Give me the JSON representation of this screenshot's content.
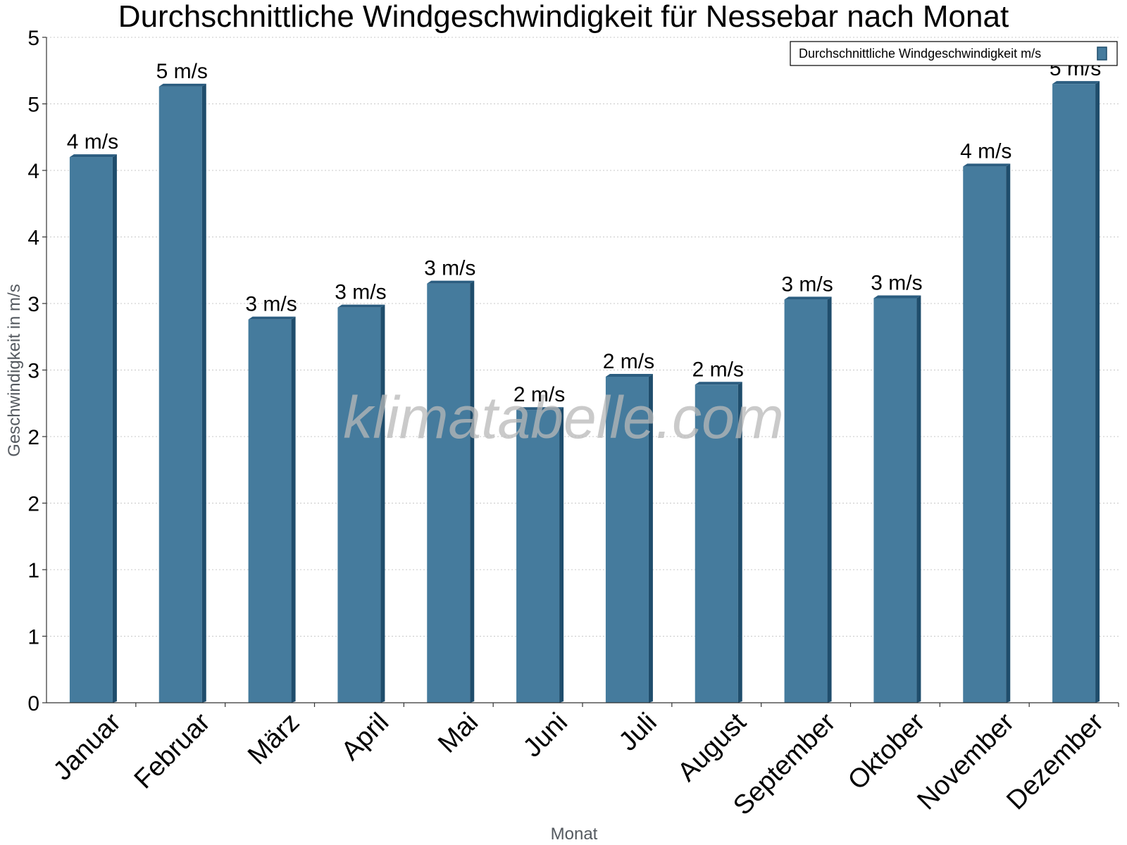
{
  "watermark": "klimatabelle.com",
  "colors": {
    "bar": "#457b9d",
    "bar_side": "#1f4d6c",
    "bar_top": "#2b5d80",
    "grid": "#c8c8c8",
    "axis": "#333333"
  },
  "chart_data": {
    "type": "bar",
    "title": "Durchschnittliche Windgeschwindigkeit für Nessebar nach Monat",
    "xlabel": "Monat",
    "ylabel": "Geschwindigkeit in m/s",
    "ylim": [
      0,
      5
    ],
    "yticks": [
      {
        "value": 0,
        "label": "0"
      },
      {
        "value": 0.5,
        "label": "1"
      },
      {
        "value": 1,
        "label": "1"
      },
      {
        "value": 1.5,
        "label": "2"
      },
      {
        "value": 2,
        "label": "2"
      },
      {
        "value": 2.5,
        "label": "3"
      },
      {
        "value": 3,
        "label": "3"
      },
      {
        "value": 3.5,
        "label": "4"
      },
      {
        "value": 4,
        "label": "4"
      },
      {
        "value": 4.5,
        "label": "5"
      },
      {
        "value": 5,
        "label": "5"
      }
    ],
    "grid": true,
    "legend": {
      "position": "top-right",
      "label": "Durchschnittliche Windgeschwindigkeit m/s"
    },
    "categories": [
      "Januar",
      "Februar",
      "März",
      "April",
      "Mai",
      "Juni",
      "Juli",
      "August",
      "September",
      "Oktober",
      "November",
      "Dezember"
    ],
    "series": [
      {
        "name": "Durchschnittliche Windgeschwindigkeit m/s",
        "values": [
          4.1,
          4.63,
          2.88,
          2.97,
          3.15,
          2.2,
          2.45,
          2.39,
          3.03,
          3.04,
          4.03,
          4.65
        ],
        "labels": [
          "4 m/s",
          "5 m/s",
          "3 m/s",
          "3 m/s",
          "3 m/s",
          "2 m/s",
          "2 m/s",
          "2 m/s",
          "3 m/s",
          "3 m/s",
          "4 m/s",
          "5 m/s"
        ]
      }
    ]
  }
}
